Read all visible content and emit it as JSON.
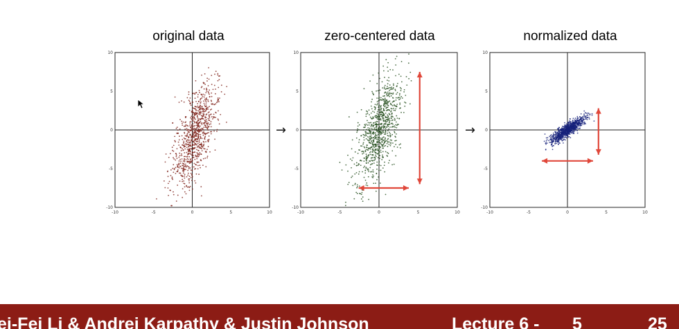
{
  "chart_data": [
    {
      "type": "scatter",
      "title": "original data",
      "title_color": "#8b2a20",
      "point_color": "#7a1a12",
      "xlim": [
        -10,
        10
      ],
      "ylim": [
        -10,
        10
      ],
      "xticks": [
        "-10",
        "-5",
        "0",
        "5",
        "10"
      ],
      "yticks": [
        "10",
        "5",
        "0",
        "-5",
        "-10"
      ],
      "gaussian": {
        "mean_x": 0.3,
        "mean_y": -0.8,
        "sx": 1.1,
        "sy": 3.6,
        "n": 900
      },
      "annotations": []
    },
    {
      "type": "scatter",
      "title": "zero-centered data",
      "title_color": "#3f7f2a",
      "point_color": "#1f4a18",
      "xlim": [
        -10,
        10
      ],
      "ylim": [
        -10,
        10
      ],
      "xticks": [
        "-10",
        "-5",
        "0",
        "5",
        "10"
      ],
      "yticks": [
        "10",
        "5",
        "0",
        "-5",
        "-10"
      ],
      "gaussian": {
        "mean_x": 0,
        "mean_y": 0,
        "sx": 1.1,
        "sy": 3.6,
        "n": 900
      },
      "annotations": [
        {
          "kind": "double-arrow",
          "from": [
            5.2,
            7.5
          ],
          "to": [
            5.2,
            -7.0
          ],
          "color": "#e0473a"
        },
        {
          "kind": "double-arrow",
          "from": [
            -2.6,
            -7.5
          ],
          "to": [
            3.8,
            -7.5
          ],
          "color": "#e0473a"
        }
      ]
    },
    {
      "type": "scatter",
      "title": "normalized data",
      "title_color": "#1c2f9a",
      "point_color": "#15217a",
      "xlim": [
        -10,
        10
      ],
      "ylim": [
        -10,
        10
      ],
      "xticks": [
        "-10",
        "-5",
        "0",
        "5",
        "10"
      ],
      "yticks": [
        "10",
        "5",
        "0",
        "-5",
        "-10"
      ],
      "gaussian": {
        "mean_x": 0,
        "mean_y": 0,
        "sx": 1.0,
        "sy": 1.0,
        "n": 900
      },
      "annotations": [
        {
          "kind": "double-arrow",
          "from": [
            4.0,
            2.8
          ],
          "to": [
            4.0,
            -3.2
          ],
          "color": "#e0473a"
        },
        {
          "kind": "double-arrow",
          "from": [
            -3.3,
            -4.0
          ],
          "to": [
            3.3,
            -4.0
          ],
          "color": "#e0473a"
        }
      ]
    }
  ],
  "between_arrow_glyph": "→",
  "footer": {
    "authors": "ei-Fei Li & Andrei Karpathy & Justin Johnson",
    "lecture": "Lecture 6 -",
    "slide": "5",
    "date": "25"
  },
  "colors": {
    "footer_bg": "#8c1c15",
    "axis": "#222222",
    "grid": "#cccccc"
  }
}
